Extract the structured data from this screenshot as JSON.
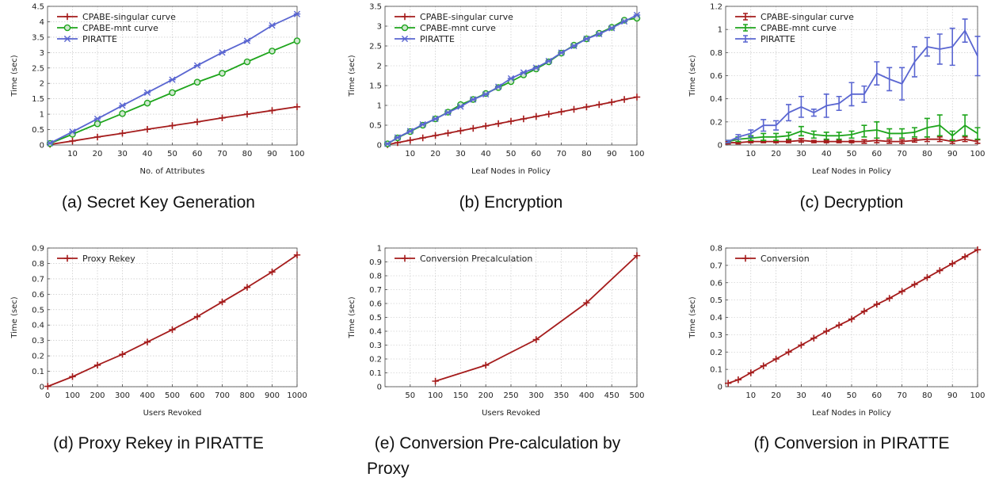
{
  "colors": {
    "singular": "#a51c1c",
    "mnt": "#1ea51c",
    "piratte": "#5a66d1"
  },
  "chart_data": [
    {
      "id": "a",
      "type": "line",
      "caption": "(a) Secret Key Generation",
      "xlabel": "No. of Attributes",
      "ylabel": "Time (sec)",
      "xlim": [
        0,
        100
      ],
      "ylim": [
        0,
        4.5
      ],
      "xticks": [
        10,
        20,
        30,
        40,
        50,
        60,
        70,
        80,
        90,
        100
      ],
      "yticks": [
        0,
        0.5,
        1,
        1.5,
        2,
        2.5,
        3,
        3.5,
        4,
        4.5
      ],
      "legend": "top-left",
      "series": [
        {
          "name": "CPABE-singular curve",
          "color": "singular",
          "marker": "plus",
          "x": [
            1,
            10,
            20,
            30,
            40,
            50,
            60,
            70,
            80,
            90,
            100
          ],
          "y": [
            0.02,
            0.13,
            0.26,
            0.38,
            0.51,
            0.63,
            0.75,
            0.88,
            1.0,
            1.12,
            1.24
          ]
        },
        {
          "name": "CPABE-mnt curve",
          "color": "mnt",
          "marker": "circle",
          "x": [
            1,
            10,
            20,
            30,
            40,
            50,
            60,
            70,
            80,
            90,
            100
          ],
          "y": [
            0.05,
            0.35,
            0.69,
            1.02,
            1.36,
            1.7,
            2.04,
            2.33,
            2.7,
            3.05,
            3.38
          ]
        },
        {
          "name": "PIRATTE",
          "color": "piratte",
          "marker": "star",
          "x": [
            1,
            10,
            20,
            30,
            40,
            50,
            60,
            70,
            80,
            90,
            100
          ],
          "y": [
            0.06,
            0.43,
            0.85,
            1.28,
            1.7,
            2.12,
            2.58,
            3.0,
            3.38,
            3.88,
            4.25
          ]
        }
      ]
    },
    {
      "id": "b",
      "type": "line",
      "caption": "(b) Encryption",
      "xlabel": "Leaf Nodes in Policy",
      "ylabel": "Time (sec)",
      "xlim": [
        0,
        100
      ],
      "ylim": [
        0,
        3.5
      ],
      "xticks": [
        10,
        20,
        30,
        40,
        50,
        60,
        70,
        80,
        90,
        100
      ],
      "yticks": [
        0,
        0.5,
        1,
        1.5,
        2,
        2.5,
        3,
        3.5
      ],
      "legend": "top-left",
      "series": [
        {
          "name": "CPABE-singular curve",
          "color": "singular",
          "marker": "plus",
          "x": [
            1,
            5,
            10,
            15,
            20,
            25,
            30,
            35,
            40,
            45,
            50,
            55,
            60,
            65,
            70,
            75,
            80,
            85,
            90,
            95,
            100
          ],
          "y": [
            0.01,
            0.06,
            0.12,
            0.18,
            0.24,
            0.3,
            0.36,
            0.42,
            0.48,
            0.54,
            0.6,
            0.66,
            0.72,
            0.78,
            0.84,
            0.9,
            0.96,
            1.02,
            1.08,
            1.15,
            1.21
          ]
        },
        {
          "name": "CPABE-mnt curve",
          "color": "mnt",
          "marker": "circle",
          "x": [
            1,
            5,
            10,
            15,
            20,
            25,
            30,
            35,
            40,
            45,
            50,
            55,
            60,
            65,
            70,
            75,
            80,
            85,
            90,
            95,
            100
          ],
          "y": [
            0.03,
            0.18,
            0.34,
            0.5,
            0.66,
            0.83,
            1.02,
            1.15,
            1.3,
            1.45,
            1.6,
            1.77,
            1.92,
            2.1,
            2.32,
            2.52,
            2.68,
            2.82,
            2.97,
            3.15,
            3.2
          ]
        },
        {
          "name": "PIRATTE",
          "color": "piratte",
          "marker": "star",
          "x": [
            1,
            5,
            10,
            15,
            20,
            25,
            30,
            35,
            40,
            45,
            50,
            55,
            60,
            65,
            70,
            75,
            80,
            85,
            90,
            95,
            100
          ],
          "y": [
            0.03,
            0.19,
            0.35,
            0.52,
            0.66,
            0.82,
            0.97,
            1.15,
            1.28,
            1.47,
            1.68,
            1.83,
            1.95,
            2.12,
            2.33,
            2.5,
            2.68,
            2.8,
            2.95,
            3.12,
            3.28
          ]
        }
      ]
    },
    {
      "id": "c",
      "type": "line",
      "caption": "(c) Decryption",
      "xlabel": "Leaf Nodes in Policy",
      "ylabel": "Time (sec)",
      "xlim": [
        0,
        100
      ],
      "ylim": [
        0,
        1.2
      ],
      "xticks": [
        10,
        20,
        30,
        40,
        50,
        60,
        70,
        80,
        90,
        100
      ],
      "yticks": [
        0,
        0.2,
        0.4,
        0.6,
        0.8,
        1,
        1.2
      ],
      "legend": "top-left",
      "errorbars": true,
      "series": [
        {
          "name": "CPABE-singular curve",
          "color": "singular",
          "marker": "errbar",
          "x": [
            1,
            5,
            10,
            15,
            20,
            25,
            30,
            35,
            40,
            45,
            50,
            55,
            60,
            65,
            70,
            75,
            80,
            85,
            90,
            95,
            100
          ],
          "y": [
            0.02,
            0.02,
            0.03,
            0.03,
            0.03,
            0.03,
            0.04,
            0.03,
            0.03,
            0.03,
            0.03,
            0.03,
            0.04,
            0.03,
            0.03,
            0.04,
            0.05,
            0.05,
            0.03,
            0.05,
            0.03
          ],
          "err": [
            0.01,
            0.01,
            0.01,
            0.01,
            0.01,
            0.01,
            0.015,
            0.01,
            0.01,
            0.01,
            0.01,
            0.015,
            0.02,
            0.015,
            0.015,
            0.015,
            0.02,
            0.02,
            0.015,
            0.02,
            0.015
          ]
        },
        {
          "name": "CPABE-mnt curve",
          "color": "mnt",
          "marker": "errbar",
          "x": [
            1,
            5,
            10,
            15,
            20,
            25,
            30,
            35,
            40,
            45,
            50,
            55,
            60,
            65,
            70,
            75,
            80,
            85,
            90,
            95,
            100
          ],
          "y": [
            0.03,
            0.05,
            0.06,
            0.07,
            0.07,
            0.08,
            0.12,
            0.09,
            0.08,
            0.08,
            0.09,
            0.12,
            0.13,
            0.1,
            0.1,
            0.11,
            0.15,
            0.17,
            0.08,
            0.17,
            0.1
          ],
          "err": [
            0.01,
            0.02,
            0.02,
            0.03,
            0.03,
            0.03,
            0.04,
            0.03,
            0.03,
            0.03,
            0.03,
            0.05,
            0.07,
            0.04,
            0.04,
            0.04,
            0.08,
            0.09,
            0.04,
            0.09,
            0.05
          ]
        },
        {
          "name": "PIRATTE",
          "color": "piratte",
          "marker": "errbar",
          "x": [
            1,
            5,
            10,
            15,
            20,
            25,
            30,
            35,
            40,
            45,
            50,
            55,
            60,
            65,
            70,
            75,
            80,
            85,
            90,
            95,
            100
          ],
          "y": [
            0.03,
            0.07,
            0.1,
            0.17,
            0.17,
            0.28,
            0.33,
            0.28,
            0.34,
            0.36,
            0.44,
            0.44,
            0.62,
            0.57,
            0.53,
            0.72,
            0.85,
            0.83,
            0.85,
            0.99,
            0.77
          ],
          "err": [
            0.01,
            0.02,
            0.03,
            0.05,
            0.04,
            0.07,
            0.09,
            0.03,
            0.1,
            0.06,
            0.1,
            0.07,
            0.1,
            0.1,
            0.14,
            0.13,
            0.08,
            0.13,
            0.16,
            0.1,
            0.17
          ]
        }
      ]
    },
    {
      "id": "d",
      "type": "line",
      "caption": "(d) Proxy Rekey in PIRATTE",
      "xlabel": "Users Revoked",
      "ylabel": "Time (sec)",
      "xlim": [
        0,
        1000
      ],
      "ylim": [
        0,
        0.9
      ],
      "xticks": [
        0,
        100,
        200,
        300,
        400,
        500,
        600,
        700,
        800,
        900,
        1000
      ],
      "yticks": [
        0,
        0.1,
        0.2,
        0.3,
        0.4,
        0.5,
        0.6,
        0.7,
        0.8,
        0.9
      ],
      "legend": "top-left",
      "series": [
        {
          "name": "Proxy Rekey",
          "color": "singular",
          "marker": "plus",
          "x": [
            1,
            100,
            200,
            300,
            400,
            500,
            600,
            700,
            800,
            900,
            1000
          ],
          "y": [
            0.002,
            0.065,
            0.14,
            0.21,
            0.29,
            0.37,
            0.455,
            0.55,
            0.645,
            0.745,
            0.855
          ]
        }
      ]
    },
    {
      "id": "e",
      "type": "line",
      "caption_line1": "(e)  Conversion  Pre-calculation  by",
      "caption_line2": "Proxy",
      "xlabel": "Users Revoked",
      "ylabel": "Time (sec)",
      "xlim": [
        0,
        500
      ],
      "ylim": [
        0,
        1
      ],
      "xticks": [
        50,
        100,
        150,
        200,
        250,
        300,
        350,
        400,
        450,
        500
      ],
      "yticks": [
        0,
        0.1,
        0.2,
        0.3,
        0.4,
        0.5,
        0.6,
        0.7,
        0.8,
        0.9,
        1
      ],
      "legend": "top-left",
      "series": [
        {
          "name": "Conversion Precalculation",
          "color": "singular",
          "marker": "plus",
          "x": [
            100,
            200,
            300,
            400,
            500
          ],
          "y": [
            0.04,
            0.155,
            0.34,
            0.605,
            0.945
          ]
        }
      ]
    },
    {
      "id": "f",
      "type": "line",
      "caption": "(f) Conversion in PIRATTE",
      "xlabel": "Leaf Nodes in Policy",
      "ylabel": "Time (sec)",
      "xlim": [
        0,
        100
      ],
      "ylim": [
        0,
        0.8
      ],
      "xticks": [
        10,
        20,
        30,
        40,
        50,
        60,
        70,
        80,
        90,
        100
      ],
      "yticks": [
        0,
        0.1,
        0.2,
        0.3,
        0.4,
        0.5,
        0.6,
        0.7,
        0.8
      ],
      "legend": "top-left",
      "series": [
        {
          "name": "Conversion",
          "color": "singular",
          "marker": "plus",
          "x": [
            1,
            5,
            10,
            15,
            20,
            25,
            30,
            35,
            40,
            45,
            50,
            55,
            60,
            65,
            70,
            75,
            80,
            85,
            90,
            95,
            100
          ],
          "y": [
            0.02,
            0.04,
            0.08,
            0.12,
            0.16,
            0.2,
            0.24,
            0.28,
            0.32,
            0.355,
            0.39,
            0.435,
            0.475,
            0.51,
            0.55,
            0.59,
            0.63,
            0.67,
            0.71,
            0.75,
            0.79
          ]
        }
      ]
    }
  ]
}
